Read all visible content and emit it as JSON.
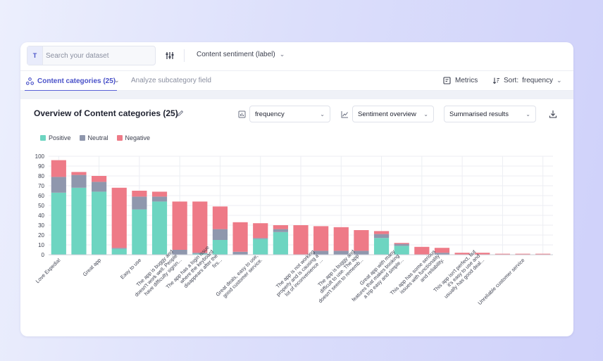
{
  "toolbar": {
    "type_badge": "T",
    "search_placeholder": "Search your dataset",
    "sentiment_dropdown": "Content sentiment (label)"
  },
  "subbar": {
    "categories_tab": "Content categories (25)",
    "analyze_link": "Analyze subcategory field",
    "metrics_label": "Metrics",
    "sort_label": "Sort:",
    "sort_value": "frequency"
  },
  "panel": {
    "title": "Overview of Content categories (25)",
    "metric_dropdown": "frequency",
    "view_dropdown": "Sentiment overview",
    "results_dropdown": "Summarised results"
  },
  "colors": {
    "positive": "#6dd5c1",
    "neutral": "#8f97ad",
    "negative": "#ee7a87",
    "accent": "#4a52c9"
  },
  "chart_data": {
    "type": "bar",
    "stacked": true,
    "ylim": [
      0,
      100
    ],
    "yticks": [
      0,
      10,
      20,
      30,
      40,
      50,
      60,
      70,
      80,
      90,
      100
    ],
    "grid": true,
    "legend_position": "top-left",
    "categories": [
      "Love Expedia!",
      "",
      "Great app",
      "",
      "Easy to use",
      "",
      "The app is buggy and doesn't work well. People have difficulty signin...",
      "",
      "The app has a login issue where the keyboard disappears after the firs...",
      "",
      "Great deals, easy to use, good customer service.",
      "",
      "",
      "The app is not working properly and is causing a lot of inconvenience ...",
      "",
      "The app is buggy and difficult to use. The app doesn't seem to rememb...",
      "",
      "Great app with many features that makes booking a trip easy and simple...",
      "",
      "This app has some serious issues with functionality and reliability.",
      "",
      "This app isn't perfect, but it's easy to use and usually has good deal...",
      "",
      "Unreliable customer service",
      ""
    ],
    "series": [
      {
        "name": "Positive",
        "values": [
          63,
          68,
          64,
          6,
          46,
          54,
          0,
          1,
          15,
          0,
          16,
          23,
          0,
          0,
          0,
          0,
          17,
          9,
          0,
          0,
          0,
          0,
          0,
          0,
          0
        ]
      },
      {
        "name": "Neutral",
        "values": [
          16,
          13,
          10,
          1,
          13,
          5,
          5,
          1,
          11,
          3,
          1,
          3,
          0,
          4,
          4,
          4,
          4,
          2,
          0,
          2,
          0,
          0,
          0,
          0,
          0
        ]
      },
      {
        "name": "Negative",
        "values": [
          17,
          3,
          6,
          61,
          6,
          5,
          49,
          52,
          23,
          30,
          15,
          4,
          30,
          25,
          24,
          21,
          3,
          1,
          8,
          5,
          2,
          2,
          1,
          1,
          1
        ]
      }
    ]
  }
}
